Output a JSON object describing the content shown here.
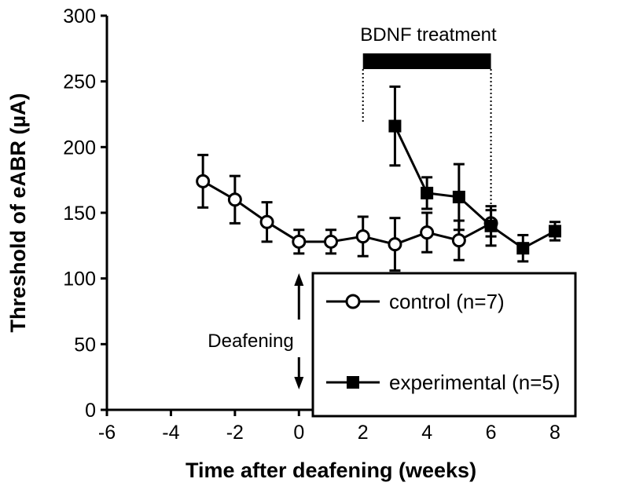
{
  "chart_data": {
    "type": "line",
    "title": "",
    "xlabel": "Time after deafening (weeks)",
    "ylabel": "Threshold of eABR (µA)",
    "xlim": [
      -6,
      8
    ],
    "ylim": [
      0,
      300
    ],
    "xticks": [
      -6,
      -4,
      -2,
      0,
      2,
      4,
      6,
      8
    ],
    "yticks": [
      0,
      50,
      100,
      150,
      200,
      250,
      300
    ],
    "grid": false,
    "legend_position": "bottom-right",
    "series": [
      {
        "name": "control (n=7)",
        "marker": "open-circle",
        "x": [
          -3,
          -2,
          -1,
          0,
          1,
          2,
          3,
          4,
          5,
          6
        ],
        "y": [
          174,
          160,
          143,
          128,
          128,
          132,
          126,
          135,
          129,
          142
        ],
        "err": [
          20,
          18,
          15,
          9,
          9,
          15,
          20,
          15,
          15,
          10
        ]
      },
      {
        "name": "experimental (n=5)",
        "marker": "filled-square",
        "x": [
          3,
          4,
          5,
          6,
          7,
          8
        ],
        "y": [
          216,
          165,
          162,
          140,
          123,
          136
        ],
        "err": [
          30,
          12,
          25,
          15,
          10,
          7
        ]
      }
    ],
    "annotations": {
      "treatment": {
        "label": "BDNF treatment",
        "x_start": 2,
        "x_end": 6
      },
      "deafening": {
        "label": "Deafening",
        "x": 0
      }
    }
  }
}
